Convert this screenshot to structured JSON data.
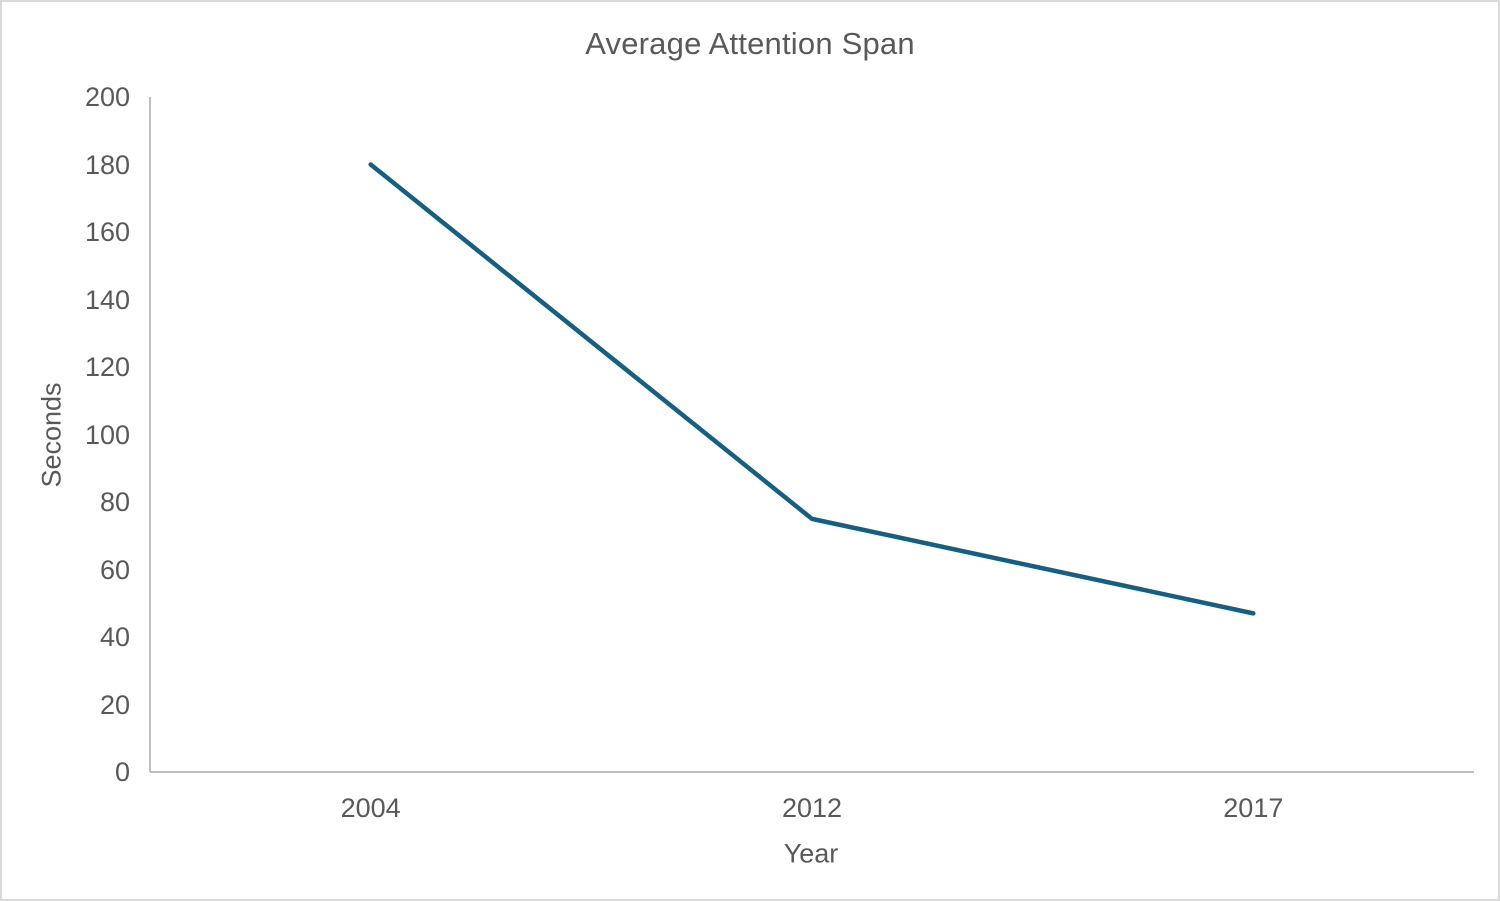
{
  "chart_data": {
    "type": "line",
    "title": "Average Attention Span",
    "xlabel": "Year",
    "ylabel": "Seconds",
    "categories": [
      "2004",
      "2012",
      "2017"
    ],
    "values": [
      180,
      75,
      47
    ],
    "ylim": [
      0,
      200
    ],
    "ytick_step": 20,
    "ytick_labels": [
      "0",
      "20",
      "40",
      "60",
      "80",
      "100",
      "120",
      "140",
      "160",
      "180",
      "200"
    ],
    "grid": false,
    "legend": "none",
    "line_color": "#156082",
    "axis_color": "#bfbfbf",
    "text_color": "#595959",
    "frame_border_color": "#d9d9d9"
  }
}
